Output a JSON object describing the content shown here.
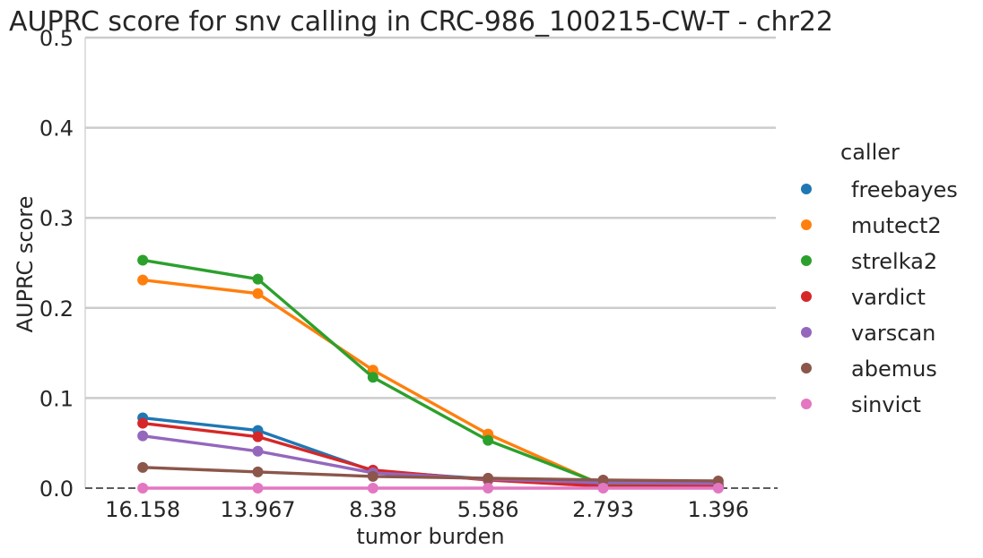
{
  "chart_data": {
    "type": "line",
    "title": "AUPRC score for snv calling in CRC-986_100215-CW-T - chr22",
    "xlabel": "tumor burden",
    "ylabel": "AUPRC score",
    "categories": [
      "16.158",
      "13.967",
      "8.38",
      "5.586",
      "2.793",
      "1.396"
    ],
    "ylim": [
      0,
      0.5
    ],
    "yticks": [
      "0.0",
      "0.1",
      "0.2",
      "0.3",
      "0.4",
      "0.5"
    ],
    "grid": "horizontal",
    "baseline": 0,
    "legend": {
      "title": "caller",
      "placement": "right"
    },
    "series": [
      {
        "name": "freebayes",
        "color": "#1f77b4",
        "values": [
          0.078,
          0.064,
          0.019,
          0.01,
          0.005,
          0.004
        ]
      },
      {
        "name": "mutect2",
        "color": "#ff7f0e",
        "values": [
          0.231,
          0.216,
          0.131,
          0.06,
          0.003,
          0.002
        ]
      },
      {
        "name": "strelka2",
        "color": "#2ca02c",
        "values": [
          0.253,
          0.232,
          0.123,
          0.053,
          0.004,
          0.003
        ]
      },
      {
        "name": "vardict",
        "color": "#d62728",
        "values": [
          0.072,
          0.057,
          0.02,
          0.009,
          0.002,
          0.002
        ]
      },
      {
        "name": "varscan",
        "color": "#9467bd",
        "values": [
          0.058,
          0.041,
          0.017,
          0.01,
          0.006,
          0.005
        ]
      },
      {
        "name": "abemus",
        "color": "#8c564b",
        "values": [
          0.023,
          0.018,
          0.013,
          0.011,
          0.009,
          0.008
        ]
      },
      {
        "name": "sinvict",
        "color": "#e377c2",
        "values": [
          0.0,
          0.0,
          0.0,
          0.0,
          0.0,
          0.0
        ]
      }
    ]
  }
}
